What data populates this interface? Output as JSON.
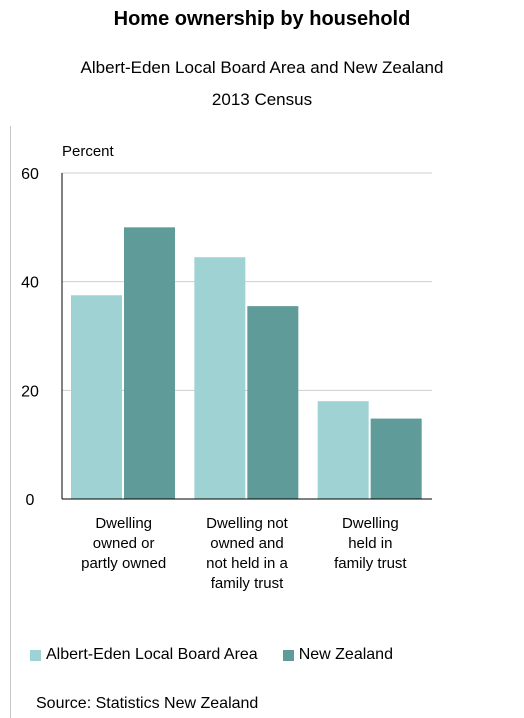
{
  "title": "Home ownership by household",
  "subtitle1": "Albert-Eden Local Board Area and New Zealand",
  "subtitle2": "2013 Census",
  "source": "Source: Statistics New Zealand",
  "chart_data": {
    "type": "bar",
    "ylabel": "Percent",
    "ylim": [
      0,
      60
    ],
    "yticks": [
      "0",
      "20",
      "40",
      "60"
    ],
    "grid": true,
    "legend_position": "bottom",
    "categories": [
      [
        "Dwelling",
        "owned or",
        "partly owned"
      ],
      [
        "Dwelling not",
        "owned and",
        "not held in a",
        "family trust"
      ],
      [
        "Dwelling",
        "held in",
        "family trust"
      ]
    ],
    "series": [
      {
        "name": "Albert-Eden Local Board Area",
        "color": "#9fd3d3",
        "values": [
          37.5,
          44.5,
          18.0
        ]
      },
      {
        "name": "New Zealand",
        "color": "#5f9b98",
        "values": [
          50.0,
          35.5,
          14.8
        ]
      }
    ]
  }
}
